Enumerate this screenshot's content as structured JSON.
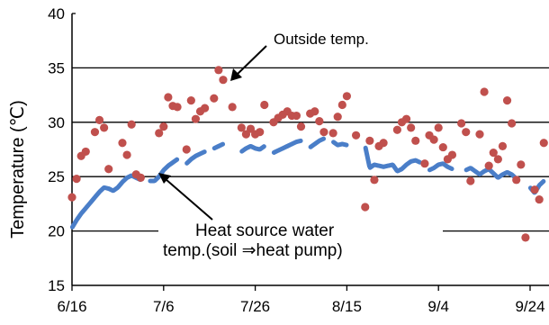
{
  "chart_data": {
    "type": "scatter",
    "ylabel": "Temperature (℃)",
    "ylim": [
      15,
      40
    ],
    "yticks": [
      15,
      20,
      25,
      30,
      35,
      40
    ],
    "xlim": [
      "6/16",
      "9/27"
    ],
    "xticks": [
      "6/16",
      "7/6",
      "7/26",
      "8/15",
      "9/4",
      "9/24"
    ],
    "grid": "horizontal major lines at 20, 25, 30, 35",
    "colors": {
      "outside": "#c0504d",
      "water": "#4a7ec8",
      "grid": "#000000"
    },
    "annotations": [
      {
        "text": "Outside temp.",
        "points_to": "7/13"
      },
      {
        "text": "Heat source water",
        "points_to": "7/6"
      },
      {
        "text": "temp.(soil ⇒heat pump)",
        "points_to": "7/6"
      }
    ],
    "series": [
      {
        "style": "scatter-dots",
        "points": [
          [
            "6/16",
            23.1
          ],
          [
            "6/17",
            24.8
          ],
          [
            "6/18",
            26.9
          ],
          [
            "6/19",
            27.3
          ],
          [
            "6/21",
            29.1
          ],
          [
            "6/22",
            30.2
          ],
          [
            "6/23",
            29.5
          ],
          [
            "6/24",
            25.7
          ],
          [
            "6/27",
            28.1
          ],
          [
            "6/28",
            27.0
          ],
          [
            "6/29",
            29.8
          ],
          [
            "6/30",
            25.2
          ],
          [
            "7/1",
            24.9
          ],
          [
            "7/5",
            29.0
          ],
          [
            "7/6",
            29.6
          ],
          [
            "7/7",
            32.3
          ],
          [
            "7/8",
            31.5
          ],
          [
            "7/9",
            31.4
          ],
          [
            "7/11",
            27.5
          ],
          [
            "7/12",
            32.0
          ],
          [
            "7/13",
            30.3
          ],
          [
            "7/14",
            31.0
          ],
          [
            "7/15",
            31.3
          ],
          [
            "7/17",
            32.2
          ],
          [
            "7/18",
            34.8
          ],
          [
            "7/19",
            33.9
          ],
          [
            "7/21",
            31.4
          ],
          [
            "7/23",
            29.5
          ],
          [
            "7/24",
            28.9
          ],
          [
            "7/25",
            29.4
          ],
          [
            "7/26",
            28.9
          ],
          [
            "7/27",
            29.1
          ],
          [
            "7/28",
            31.6
          ],
          [
            "7/30",
            30.0
          ],
          [
            "7/31",
            30.4
          ],
          [
            "8/1",
            30.7
          ],
          [
            "8/2",
            31.0
          ],
          [
            "8/3",
            30.6
          ],
          [
            "8/4",
            30.6
          ],
          [
            "8/5",
            29.6
          ],
          [
            "8/7",
            30.8
          ],
          [
            "8/8",
            31.0
          ],
          [
            "8/9",
            30.1
          ],
          [
            "8/10",
            29.1
          ],
          [
            "8/12",
            29.0
          ],
          [
            "8/13",
            30.5
          ],
          [
            "8/14",
            31.6
          ],
          [
            "8/15",
            32.4
          ],
          [
            "8/17",
            28.8
          ],
          [
            "8/19",
            22.2
          ],
          [
            "8/20",
            28.3
          ],
          [
            "8/21",
            24.7
          ],
          [
            "8/22",
            27.8
          ],
          [
            "8/23",
            28.1
          ],
          [
            "8/26",
            29.3
          ],
          [
            "8/27",
            30.0
          ],
          [
            "8/28",
            30.3
          ],
          [
            "8/29",
            29.5
          ],
          [
            "8/30",
            28.3
          ],
          [
            "9/1",
            26.2
          ],
          [
            "9/2",
            28.8
          ],
          [
            "9/3",
            28.4
          ],
          [
            "9/4",
            29.5
          ],
          [
            "9/5",
            27.7
          ],
          [
            "9/6",
            26.6
          ],
          [
            "9/7",
            27.0
          ],
          [
            "9/9",
            29.9
          ],
          [
            "9/10",
            29.1
          ],
          [
            "9/11",
            24.6
          ],
          [
            "9/13",
            28.9
          ],
          [
            "9/14",
            32.8
          ],
          [
            "9/15",
            26.0
          ],
          [
            "9/16",
            27.2
          ],
          [
            "9/17",
            26.6
          ],
          [
            "9/18",
            27.8
          ],
          [
            "9/19",
            32.0
          ],
          [
            "9/20",
            29.9
          ],
          [
            "9/21",
            24.7
          ],
          [
            "9/22",
            26.1
          ],
          [
            "9/23",
            19.4
          ],
          [
            "9/25",
            23.8
          ],
          [
            "9/26",
            22.9
          ],
          [
            "9/27",
            28.1
          ]
        ]
      },
      {
        "style": "dashed-line",
        "points": [
          [
            "6/16",
            20.3
          ],
          [
            "6/17",
            21.0
          ],
          [
            "6/18",
            21.6
          ],
          [
            "6/19",
            22.1
          ],
          [
            "6/20",
            22.6
          ],
          [
            "6/21",
            23.1
          ],
          [
            "6/22",
            23.6
          ],
          [
            "6/23",
            24.0
          ],
          [
            "6/24",
            23.9
          ],
          [
            "6/25",
            23.7
          ],
          [
            "6/26",
            24.0
          ],
          [
            "6/27",
            24.5
          ],
          [
            "6/28",
            24.9
          ],
          [
            "6/29",
            25.1
          ],
          [
            "6/30",
            24.9
          ],
          [
            "7/1",
            24.7
          ],
          [
            "7/3",
            24.6
          ],
          [
            "7/4",
            24.6
          ],
          [
            "7/5",
            25.0
          ],
          [
            "7/6",
            25.6
          ],
          [
            "7/7",
            26.0
          ],
          [
            "7/8",
            26.3
          ],
          [
            "7/9",
            26.6
          ],
          [
            "7/11",
            26.2
          ],
          [
            "7/12",
            26.6
          ],
          [
            "7/13",
            26.9
          ],
          [
            "7/14",
            27.1
          ],
          [
            "7/15",
            27.3
          ],
          [
            "7/17",
            27.6
          ],
          [
            "7/18",
            27.8
          ],
          [
            "7/19",
            28.0
          ],
          [
            "7/21",
            27.8
          ],
          [
            "7/23",
            27.3
          ],
          [
            "7/24",
            27.6
          ],
          [
            "7/25",
            27.8
          ],
          [
            "7/26",
            27.6
          ],
          [
            "7/27",
            27.5
          ],
          [
            "7/28",
            27.8
          ],
          [
            "7/30",
            27.2
          ],
          [
            "7/31",
            27.4
          ],
          [
            "8/1",
            27.6
          ],
          [
            "8/2",
            27.8
          ],
          [
            "8/3",
            28.0
          ],
          [
            "8/4",
            28.2
          ],
          [
            "8/5",
            28.3
          ],
          [
            "8/7",
            27.7
          ],
          [
            "8/8",
            28.0
          ],
          [
            "8/9",
            28.3
          ],
          [
            "8/10",
            28.5
          ],
          [
            "8/12",
            28.2
          ],
          [
            "8/13",
            27.9
          ],
          [
            "8/14",
            28.0
          ],
          [
            "8/15",
            27.9
          ],
          [
            "8/17",
            27.9
          ],
          [
            "8/19",
            27.8
          ],
          [
            "8/20",
            25.8
          ],
          [
            "8/21",
            26.1
          ],
          [
            "8/22",
            26.0
          ],
          [
            "8/23",
            25.9
          ],
          [
            "8/24",
            26.0
          ],
          [
            "8/25",
            26.1
          ],
          [
            "8/26",
            25.5
          ],
          [
            "8/27",
            25.7
          ],
          [
            "8/28",
            26.1
          ],
          [
            "8/29",
            26.4
          ],
          [
            "8/30",
            26.5
          ],
          [
            "8/31",
            26.3
          ],
          [
            "9/2",
            25.6
          ],
          [
            "9/3",
            25.8
          ],
          [
            "9/4",
            26.1
          ],
          [
            "9/5",
            26.2
          ],
          [
            "9/6",
            25.9
          ],
          [
            "9/7",
            25.7
          ],
          [
            "9/10",
            25.6
          ],
          [
            "9/11",
            25.8
          ],
          [
            "9/12",
            25.5
          ],
          [
            "9/13",
            25.2
          ],
          [
            "9/14",
            25.5
          ],
          [
            "9/15",
            25.7
          ],
          [
            "9/16",
            25.3
          ],
          [
            "9/17",
            24.9
          ],
          [
            "9/18",
            25.2
          ],
          [
            "9/19",
            25.4
          ],
          [
            "9/20",
            25.2
          ],
          [
            "9/21",
            24.8
          ],
          [
            "9/24",
            24.0
          ],
          [
            "9/25",
            23.5
          ],
          [
            "9/26",
            24.2
          ],
          [
            "9/27",
            24.6
          ]
        ]
      }
    ]
  }
}
